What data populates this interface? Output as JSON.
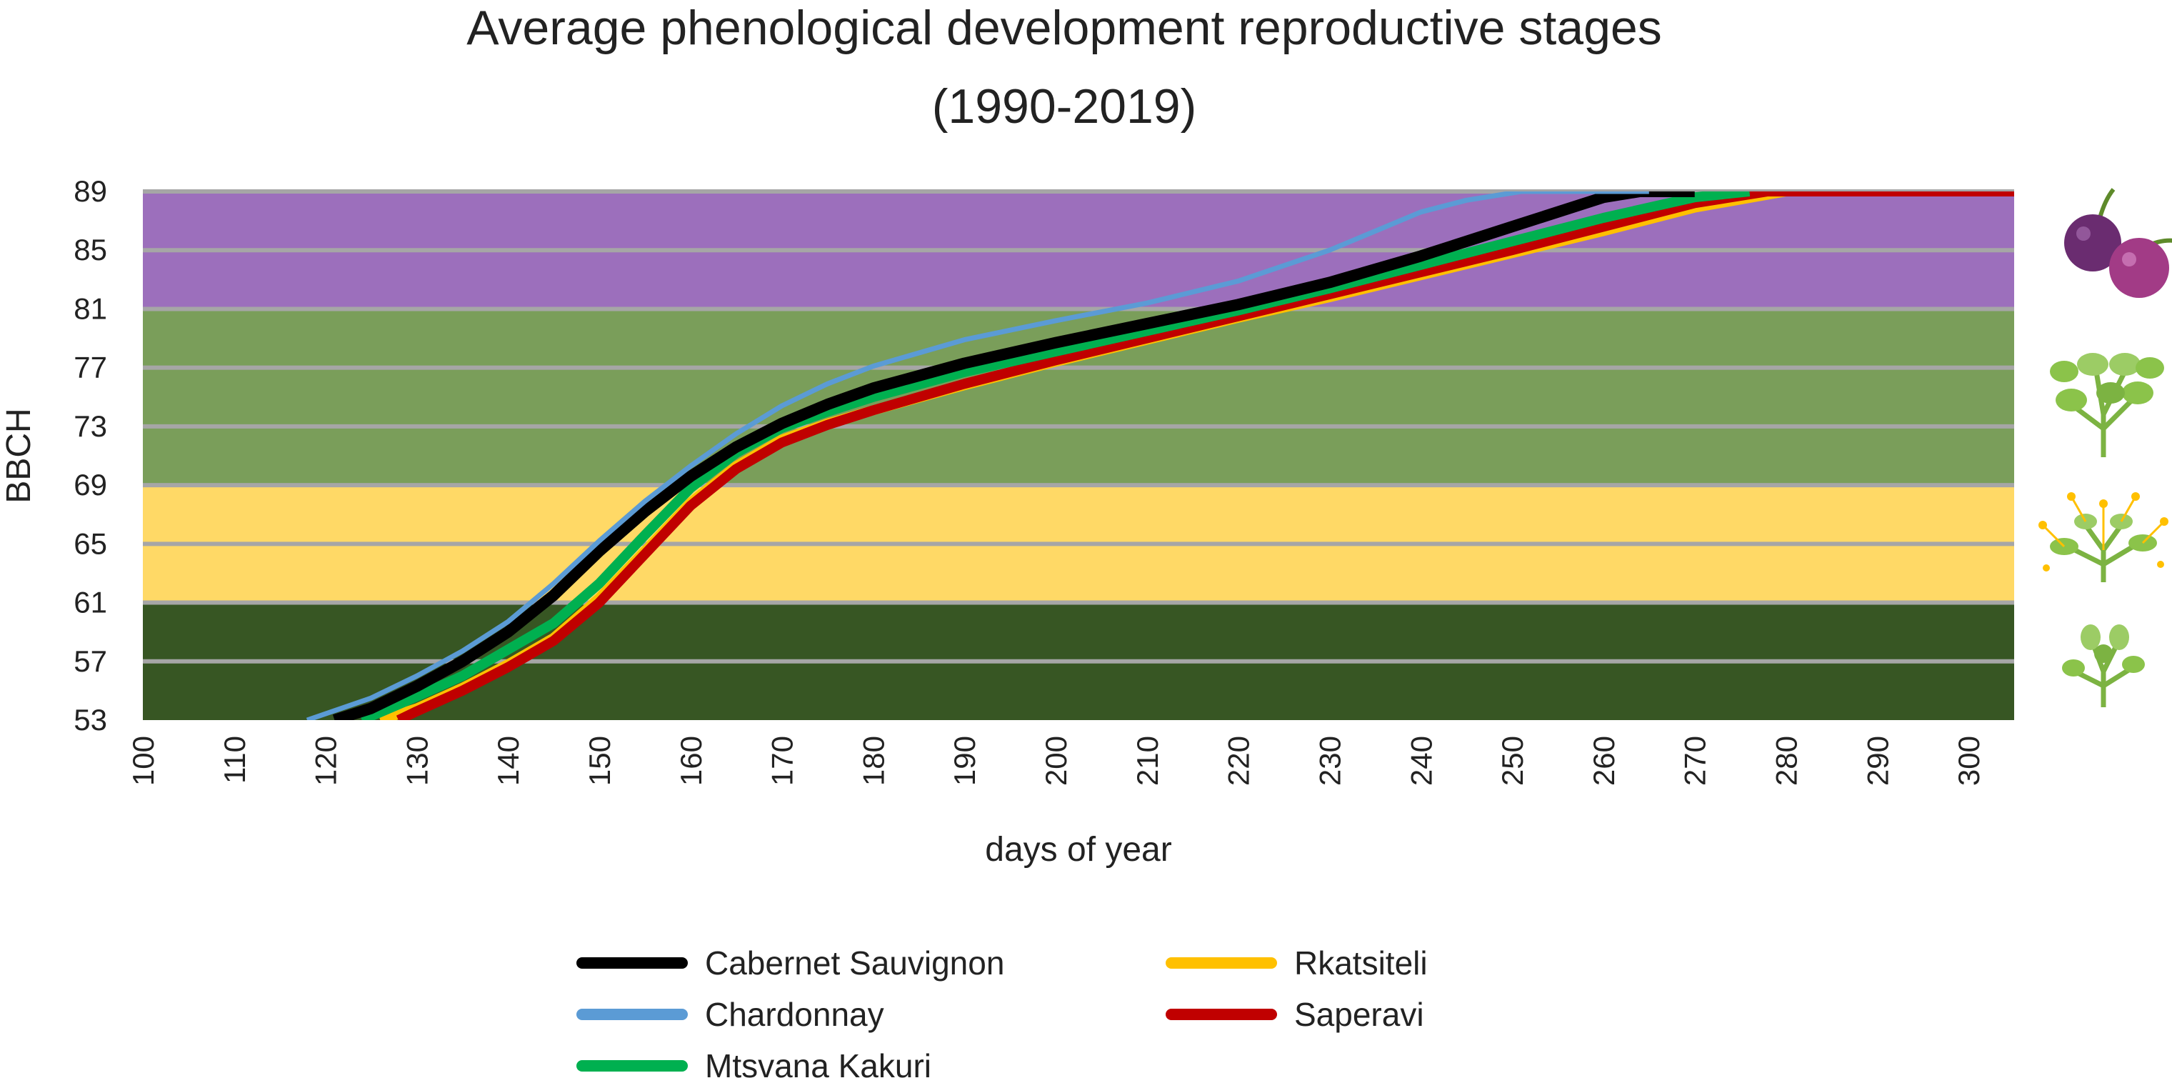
{
  "chart_data": {
    "type": "line",
    "title": "Average phenological development reproductive stages",
    "subtitle": "(1990-2019)",
    "xlabel": "days of year",
    "ylabel": "BBCH",
    "xlim": [
      100,
      305
    ],
    "ylim": [
      53,
      89
    ],
    "xticks": [
      "100",
      "110",
      "120",
      "130",
      "140",
      "150",
      "160",
      "170",
      "180",
      "190",
      "200",
      "210",
      "220",
      "230",
      "240",
      "250",
      "260",
      "270",
      "280",
      "290",
      "300"
    ],
    "yticks": [
      "53",
      "57",
      "61",
      "65",
      "69",
      "73",
      "77",
      "81",
      "85",
      "89"
    ],
    "grid": true,
    "legend_position": "bottom",
    "stage_bands": [
      {
        "from": 53,
        "to": 61,
        "color": "#375623",
        "icon": "inflorescence-icon"
      },
      {
        "from": 61,
        "to": 69,
        "color": "#ffd966",
        "icon": "flowering-icon"
      },
      {
        "from": 69,
        "to": 81,
        "color": "#7a9e5a",
        "icon": "berry-development-icon"
      },
      {
        "from": 81,
        "to": 89,
        "color": "#9c6fbc",
        "icon": "ripe-berries-icon"
      }
    ],
    "series": [
      {
        "name": "Rkatsiteli",
        "color": "#ffc000",
        "width": 14,
        "x": [
          126,
          130,
          135,
          140,
          145,
          150,
          155,
          160,
          165,
          170,
          175,
          180,
          190,
          200,
          210,
          220,
          230,
          240,
          250,
          260,
          270,
          280,
          305
        ],
        "y": [
          53,
          53.8,
          55.2,
          56.8,
          58.6,
          61.3,
          64.5,
          67.8,
          70.3,
          72.1,
          73.2,
          74.1,
          75.8,
          77.4,
          78.9,
          80.4,
          81.8,
          83.3,
          84.8,
          86.3,
          87.9,
          89,
          89
        ]
      },
      {
        "name": "Saperavi",
        "color": "#c00000",
        "width": 14,
        "x": [
          128,
          130,
          135,
          140,
          145,
          150,
          155,
          160,
          165,
          170,
          175,
          180,
          190,
          200,
          210,
          220,
          230,
          240,
          250,
          260,
          270,
          278,
          305
        ],
        "y": [
          53,
          53.6,
          55,
          56.6,
          58.4,
          61,
          64.3,
          67.6,
          70.1,
          71.9,
          73.1,
          74.1,
          75.9,
          77.5,
          79,
          80.5,
          82,
          83.5,
          85,
          86.6,
          88.2,
          89,
          89
        ]
      },
      {
        "name": "Mtsvana Kakuri",
        "color": "#00b050",
        "width": 14,
        "x": [
          124,
          130,
          135,
          140,
          145,
          150,
          155,
          160,
          165,
          170,
          175,
          180,
          190,
          200,
          210,
          220,
          230,
          240,
          250,
          260,
          270,
          276
        ],
        "y": [
          53,
          54.6,
          56,
          57.8,
          59.6,
          62.3,
          65.6,
          68.8,
          71.2,
          72.9,
          74,
          75,
          76.7,
          78.1,
          79.5,
          80.9,
          82.4,
          84,
          85.6,
          87.2,
          88.6,
          89
        ]
      },
      {
        "name": "Cabernet Sauvignon",
        "color": "#000000",
        "width": 16,
        "x": [
          121,
          125,
          130,
          135,
          140,
          145,
          150,
          155,
          160,
          165,
          170,
          175,
          180,
          190,
          200,
          210,
          220,
          230,
          240,
          250,
          260,
          264,
          270
        ],
        "y": [
          53,
          53.8,
          55.3,
          57,
          59,
          61.5,
          64.5,
          67.2,
          69.6,
          71.6,
          73.2,
          74.5,
          75.6,
          77.3,
          78.7,
          80,
          81.3,
          82.8,
          84.6,
          86.6,
          88.6,
          89,
          89
        ]
      },
      {
        "name": "Chardonnay",
        "color": "#5b9bd5",
        "width": 7,
        "x": [
          118,
          125,
          130,
          135,
          140,
          145,
          150,
          155,
          160,
          165,
          170,
          175,
          180,
          190,
          200,
          210,
          220,
          230,
          240,
          245,
          251,
          265
        ],
        "y": [
          53,
          54.5,
          56,
          57.7,
          59.7,
          62.3,
          65.2,
          67.9,
          70.3,
          72.5,
          74.4,
          75.9,
          77.1,
          78.9,
          80.2,
          81.4,
          82.9,
          85,
          87.6,
          88.4,
          89,
          89
        ]
      }
    ]
  },
  "legend": [
    {
      "name": "Cabernet Sauvignon",
      "color": "#000000"
    },
    {
      "name": "Chardonnay",
      "color": "#5b9bd5"
    },
    {
      "name": "Mtsvana Kakuri",
      "color": "#00b050"
    },
    {
      "name": "Rkatsiteli",
      "color": "#ffc000"
    },
    {
      "name": "Saperavi",
      "color": "#c00000"
    }
  ]
}
